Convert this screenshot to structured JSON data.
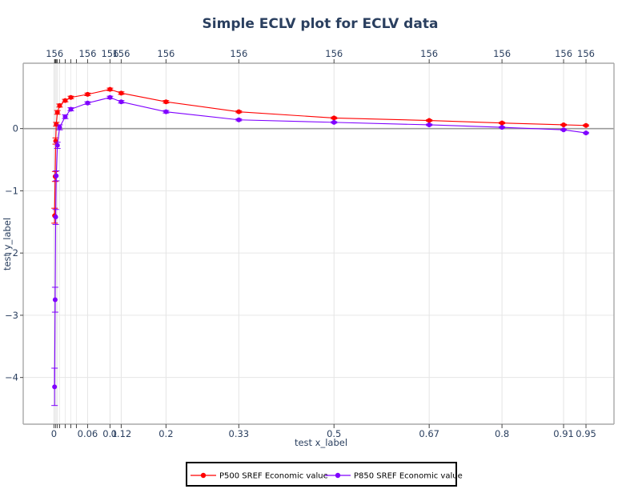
{
  "chart_data": {
    "type": "line",
    "title": "Simple ECLV plot for ECLV data",
    "xlabel": "test x_label",
    "ylabel": "test y_label",
    "xlim": [
      -0.055,
      1.0
    ],
    "ylim": [
      -4.75,
      1.05
    ],
    "grid": true,
    "legend_position": "bottom-center",
    "x_ticks": [
      {
        "value": 0,
        "label": "0"
      },
      {
        "value": 0.06,
        "label": "0.06"
      },
      {
        "value": 0.1,
        "label": "0.1"
      },
      {
        "value": 0.12,
        "label": "0.12"
      },
      {
        "value": 0.2,
        "label": "0.2"
      },
      {
        "value": 0.33,
        "label": "0.33"
      },
      {
        "value": 0.5,
        "label": "0.5"
      },
      {
        "value": 0.67,
        "label": "0.67"
      },
      {
        "value": 0.8,
        "label": "0.8"
      },
      {
        "value": 0.91,
        "label": "0.91"
      },
      {
        "value": 0.95,
        "label": "0.95"
      }
    ],
    "x_minor_ticks": [
      0.003,
      0.006,
      0.01,
      0.02,
      0.03,
      0.04
    ],
    "y_ticks": [
      {
        "value": 0,
        "label": "0"
      },
      {
        "value": -1,
        "label": "−1"
      },
      {
        "value": -2,
        "label": "−2"
      },
      {
        "value": -3,
        "label": "−3"
      },
      {
        "value": -4,
        "label": "−4"
      }
    ],
    "top_axis": {
      "label": "156",
      "ticks": [
        0.001,
        0.06,
        0.1,
        0.12,
        0.2,
        0.33,
        0.5,
        0.67,
        0.8,
        0.91,
        0.95
      ],
      "minor_ticks": [
        0.002,
        0.003,
        0.004,
        0.006,
        0.01,
        0.02,
        0.03,
        0.04
      ]
    },
    "series": [
      {
        "name": "P500 SREF Economic value",
        "color": "#ff0000",
        "points": [
          {
            "x": 0.001,
            "y": -1.4,
            "err": 0.12
          },
          {
            "x": 0.002,
            "y": -0.77,
            "err": 0.08
          },
          {
            "x": 0.003,
            "y": -0.2,
            "err": 0.05
          },
          {
            "x": 0.004,
            "y": 0.07,
            "err": 0.03
          },
          {
            "x": 0.006,
            "y": 0.26,
            "err": 0.03
          },
          {
            "x": 0.01,
            "y": 0.37,
            "err": 0.025
          },
          {
            "x": 0.02,
            "y": 0.45,
            "err": 0.02
          },
          {
            "x": 0.03,
            "y": 0.5,
            "err": 0.02
          },
          {
            "x": 0.06,
            "y": 0.55,
            "err": 0.02
          },
          {
            "x": 0.1,
            "y": 0.63,
            "err": 0.02
          },
          {
            "x": 0.12,
            "y": 0.57,
            "err": 0.02
          },
          {
            "x": 0.2,
            "y": 0.43,
            "err": 0.02
          },
          {
            "x": 0.33,
            "y": 0.27,
            "err": 0.015
          },
          {
            "x": 0.5,
            "y": 0.17,
            "err": 0.015
          },
          {
            "x": 0.67,
            "y": 0.13,
            "err": 0.012
          },
          {
            "x": 0.8,
            "y": 0.09,
            "err": 0.012
          },
          {
            "x": 0.91,
            "y": 0.06,
            "err": 0.01
          },
          {
            "x": 0.95,
            "y": 0.05,
            "err": 0.01
          }
        ]
      },
      {
        "name": "P850 SREF Economic value",
        "color": "#7f00ff",
        "points": [
          {
            "x": 0.001,
            "y": -4.15,
            "err": 0.3
          },
          {
            "x": 0.002,
            "y": -2.75,
            "err": 0.2
          },
          {
            "x": 0.003,
            "y": -1.42,
            "err": 0.12
          },
          {
            "x": 0.004,
            "y": -0.76,
            "err": 0.08
          },
          {
            "x": 0.006,
            "y": -0.27,
            "err": 0.05
          },
          {
            "x": 0.01,
            "y": 0.02,
            "err": 0.04
          },
          {
            "x": 0.02,
            "y": 0.19,
            "err": 0.03
          },
          {
            "x": 0.03,
            "y": 0.31,
            "err": 0.025
          },
          {
            "x": 0.06,
            "y": 0.41,
            "err": 0.02
          },
          {
            "x": 0.1,
            "y": 0.5,
            "err": 0.02
          },
          {
            "x": 0.12,
            "y": 0.43,
            "err": 0.02
          },
          {
            "x": 0.2,
            "y": 0.27,
            "err": 0.02
          },
          {
            "x": 0.33,
            "y": 0.14,
            "err": 0.015
          },
          {
            "x": 0.5,
            "y": 0.1,
            "err": 0.012
          },
          {
            "x": 0.67,
            "y": 0.06,
            "err": 0.012
          },
          {
            "x": 0.8,
            "y": 0.02,
            "err": 0.01
          },
          {
            "x": 0.91,
            "y": -0.02,
            "err": 0.01
          },
          {
            "x": 0.95,
            "y": -0.07,
            "err": 0.01
          }
        ]
      }
    ]
  }
}
